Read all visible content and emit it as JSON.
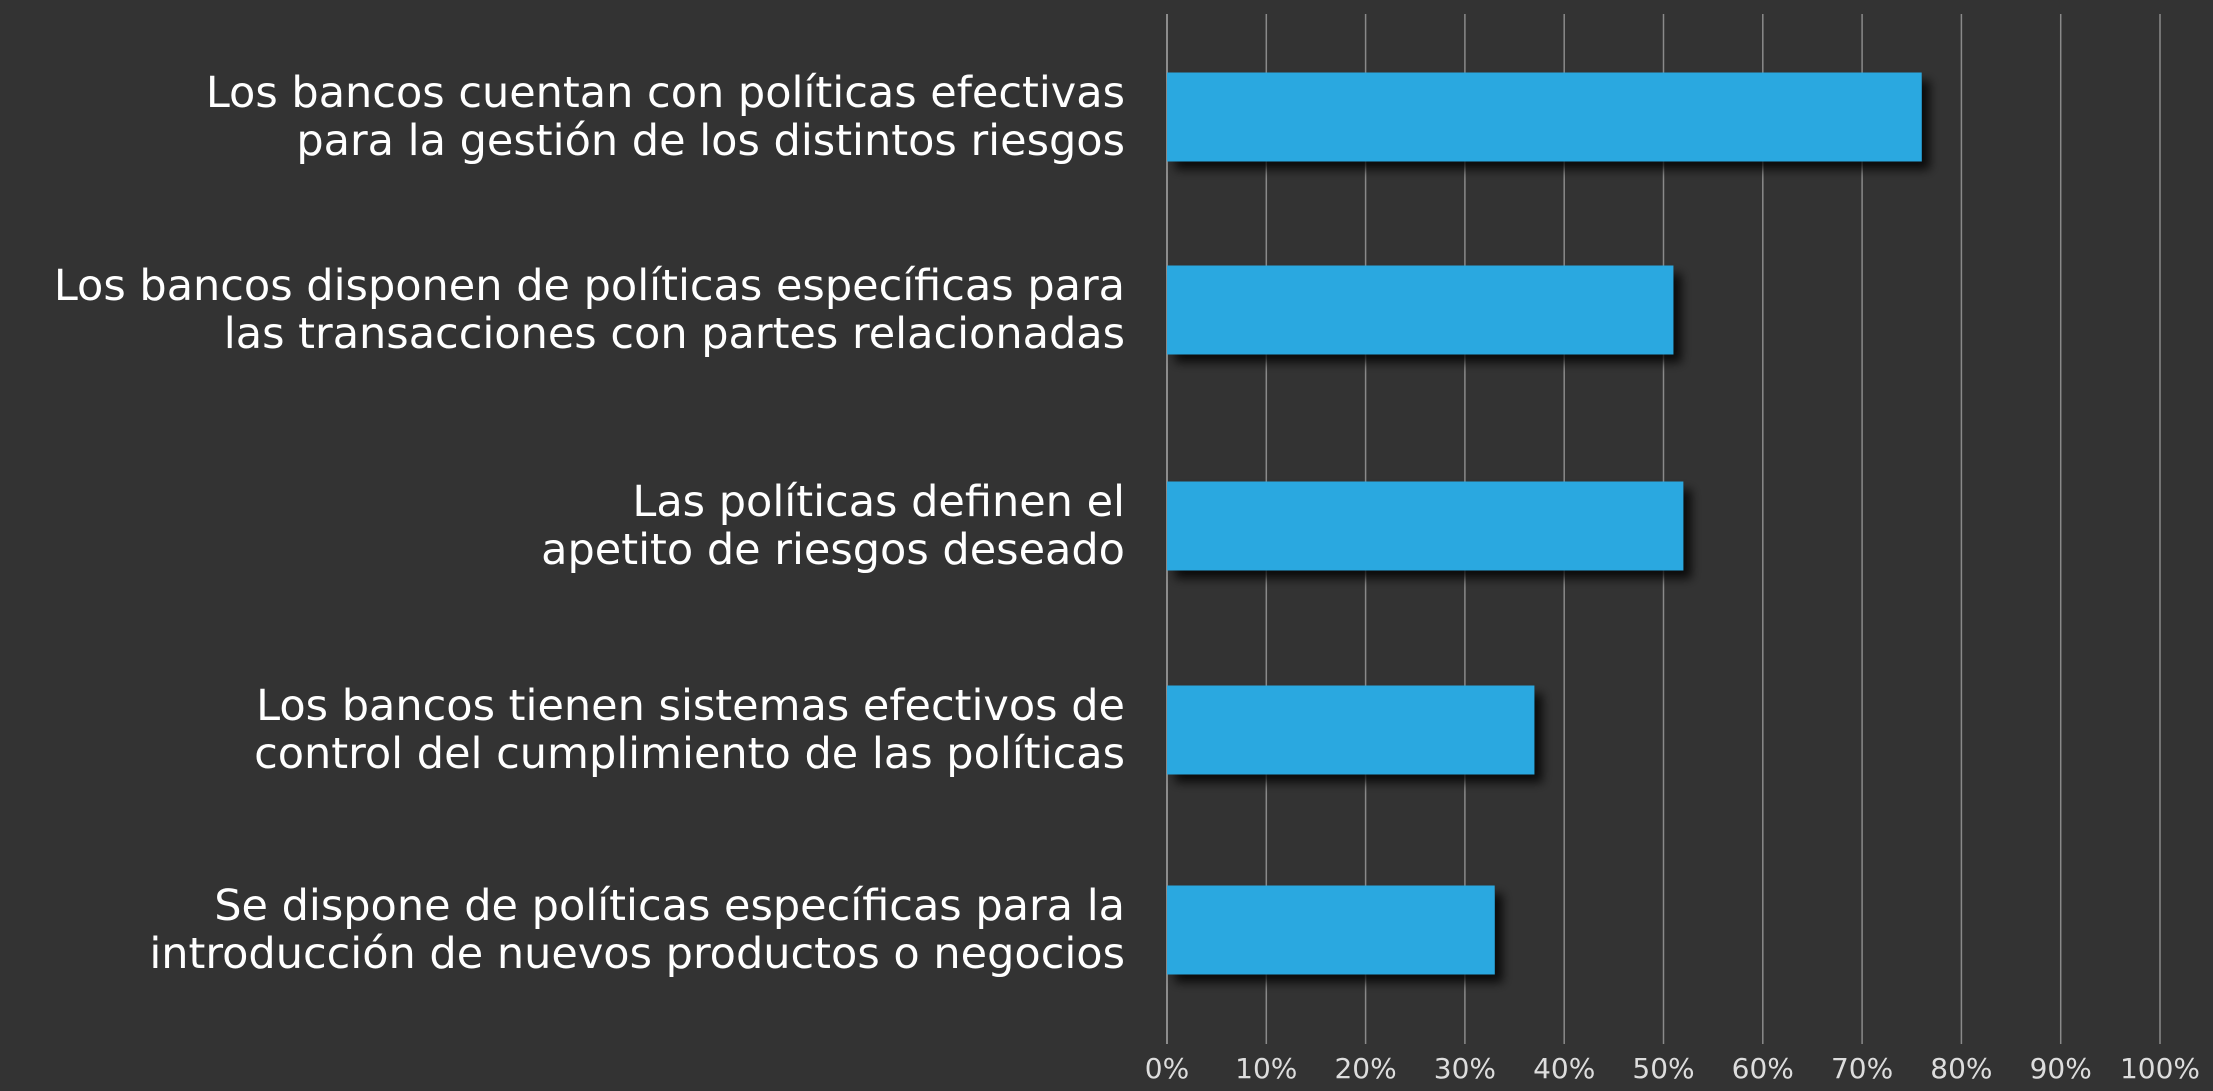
{
  "chart_data": {
    "type": "hbar",
    "categories": [
      "Los bancos cuentan con políticas efectivas\npara la gestión de los distintos riesgos",
      "Los bancos disponen de políticas específicas para\nlas transacciones con partes relacionadas",
      "Las políticas definen el\napetito de riesgos deseado",
      "Los bancos tienen sistemas efectivos de\ncontrol del cumplimiento de las políticas",
      "Se dispone de políticas específicas para la\nintroducción de nuevos productos o negocios"
    ],
    "values": [
      76,
      51,
      52,
      37,
      33
    ],
    "color": "#29a8e0",
    "xlim": [
      0,
      100
    ],
    "xticks": [
      {
        "value": 0,
        "label": "0%"
      },
      {
        "value": 10,
        "label": "10%"
      },
      {
        "value": 20,
        "label": "20%"
      },
      {
        "value": 30,
        "label": "30%"
      },
      {
        "value": 40,
        "label": "40%"
      },
      {
        "value": 50,
        "label": "50%"
      },
      {
        "value": 60,
        "label": "60%"
      },
      {
        "value": 70,
        "label": "70%"
      },
      {
        "value": 80,
        "label": "80%"
      },
      {
        "value": 90,
        "label": "90%"
      },
      {
        "value": 100,
        "label": "100%"
      }
    ],
    "grid": true
  }
}
